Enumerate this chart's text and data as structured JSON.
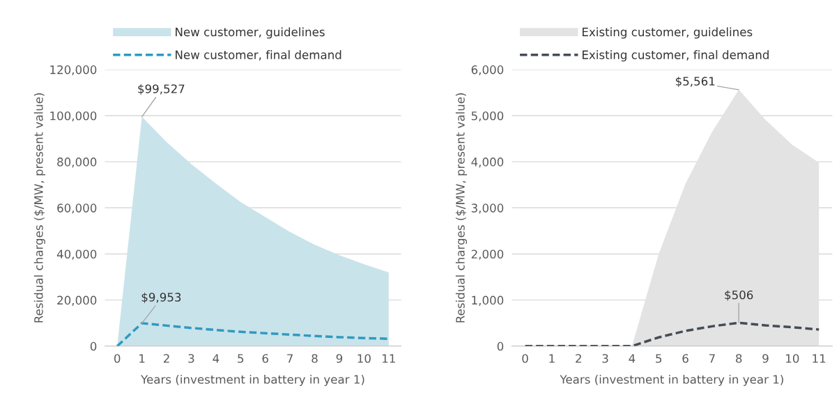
{
  "chart_data": [
    {
      "type": "area",
      "xlabel": "Years (investment in battery in year 1)",
      "ylabel": "Residual charges ($/MW, present value)",
      "categories": [
        "0",
        "1",
        "2",
        "3",
        "4",
        "5",
        "6",
        "7",
        "8",
        "9",
        "10",
        "11"
      ],
      "series": [
        {
          "name": "New customer, guidelines",
          "type": "area",
          "color": "#c9e3ea",
          "values": [
            0,
            99527,
            88500,
            79000,
            70500,
            62500,
            56000,
            49500,
            44000,
            39500,
            35500,
            32000
          ]
        },
        {
          "name": "New customer, final demand",
          "type": "line",
          "color": "#2e9ac0",
          "line_style": "dashed",
          "values": [
            0,
            9953,
            8900,
            7900,
            7000,
            6200,
            5600,
            5000,
            4400,
            3900,
            3500,
            3200
          ]
        }
      ],
      "ylim": [
        0,
        120000
      ],
      "yticks": [
        {
          "value": 0,
          "label": "0"
        },
        {
          "value": 20000,
          "label": "20,000"
        },
        {
          "value": 40000,
          "label": "40,000"
        },
        {
          "value": 60000,
          "label": "60,000"
        },
        {
          "value": 80000,
          "label": "80,000"
        },
        {
          "value": 100000,
          "label": "100,000"
        },
        {
          "value": 120000,
          "label": "120,000"
        }
      ],
      "grid": "y",
      "legend": "top left",
      "annotations": [
        {
          "text": "$99,527",
          "x": "1",
          "y": 99527
        },
        {
          "text": "$9,953",
          "x": "1",
          "y": 9953
        }
      ]
    },
    {
      "type": "area",
      "xlabel": "Years (investment in battery in year 1)",
      "ylabel": "Residual charges ($/MW, present value)",
      "categories": [
        "0",
        "1",
        "2",
        "3",
        "4",
        "5",
        "6",
        "7",
        "8",
        "9",
        "10",
        "11"
      ],
      "series": [
        {
          "name": "Existing customer, guidelines",
          "type": "area",
          "color": "#e3e3e3",
          "values": [
            0,
            0,
            0,
            0,
            0,
            2000,
            3520,
            4650,
            5561,
            4910,
            4370,
            3980
          ]
        },
        {
          "name": "Existing customer, final demand",
          "type": "line",
          "color": "#454c55",
          "line_style": "dashed",
          "values": [
            0,
            0,
            0,
            0,
            0,
            190,
            330,
            430,
            506,
            450,
            410,
            360
          ]
        }
      ],
      "ylim": [
        0,
        6000
      ],
      "yticks": [
        {
          "value": 0,
          "label": "0"
        },
        {
          "value": 1000,
          "label": "1,000"
        },
        {
          "value": 2000,
          "label": "2,000"
        },
        {
          "value": 3000,
          "label": "3,000"
        },
        {
          "value": 4000,
          "label": "4,000"
        },
        {
          "value": 5000,
          "label": "5,000"
        },
        {
          "value": 6000,
          "label": "6,000"
        }
      ],
      "grid": "y",
      "legend": "top left",
      "annotations": [
        {
          "text": "$5,561",
          "x": "8",
          "y": 5561
        },
        {
          "text": "$506",
          "x": "8",
          "y": 506
        }
      ]
    }
  ]
}
